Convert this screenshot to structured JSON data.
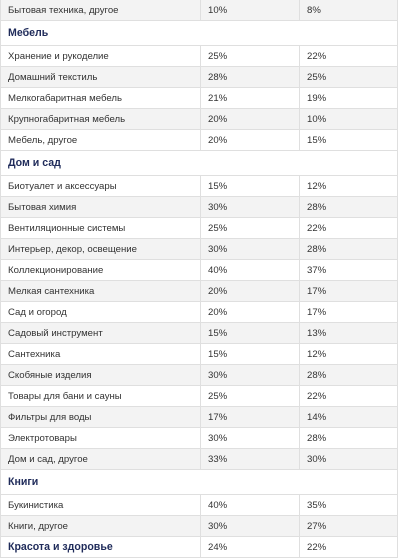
{
  "table": {
    "rows": [
      {
        "type": "data",
        "name": "Бытовая техника, другое",
        "a": "10%",
        "b": "8%"
      },
      {
        "type": "cat",
        "name": "Мебель"
      },
      {
        "type": "data",
        "name": "Хранение и рукоделие",
        "a": "25%",
        "b": "22%"
      },
      {
        "type": "data",
        "name": "Домашний текстиль",
        "a": "28%",
        "b": "25%"
      },
      {
        "type": "data",
        "name": "Мелкогабаритная мебель",
        "a": "21%",
        "b": "19%"
      },
      {
        "type": "data",
        "name": "Крупногабаритная мебель",
        "a": "20%",
        "b": "10%"
      },
      {
        "type": "data",
        "name": "Мебель, другое",
        "a": "20%",
        "b": "15%"
      },
      {
        "type": "cat",
        "name": "Дом и сад"
      },
      {
        "type": "data",
        "name": "Биотуалет и аксессуары",
        "a": "15%",
        "b": "12%"
      },
      {
        "type": "data",
        "name": "Бытовая химия",
        "a": "30%",
        "b": "28%"
      },
      {
        "type": "data",
        "name": "Вентиляционные системы",
        "a": "25%",
        "b": "22%"
      },
      {
        "type": "data",
        "name": "Интерьер, декор, освещение",
        "a": "30%",
        "b": "28%"
      },
      {
        "type": "data",
        "name": "Коллекционирование",
        "a": "40%",
        "b": "37%"
      },
      {
        "type": "data",
        "name": "Мелкая сантехника",
        "a": "20%",
        "b": "17%"
      },
      {
        "type": "data",
        "name": "Сад и огород",
        "a": "20%",
        "b": "17%"
      },
      {
        "type": "data",
        "name": "Садовый инструмент",
        "a": "15%",
        "b": "13%"
      },
      {
        "type": "data",
        "name": "Сантехника",
        "a": "15%",
        "b": "12%"
      },
      {
        "type": "data",
        "name": "Скобяные изделия",
        "a": "30%",
        "b": "28%"
      },
      {
        "type": "data",
        "name": "Товары для бани и сауны",
        "a": "25%",
        "b": "22%"
      },
      {
        "type": "data",
        "name": "Фильтры для воды",
        "a": "17%",
        "b": "14%"
      },
      {
        "type": "data",
        "name": "Электротовары",
        "a": "30%",
        "b": "28%"
      },
      {
        "type": "data",
        "name": "Дом и сад, другое",
        "a": "33%",
        "b": "30%"
      },
      {
        "type": "cat",
        "name": "Книги"
      },
      {
        "type": "data",
        "name": "Букинистика",
        "a": "40%",
        "b": "35%"
      },
      {
        "type": "data",
        "name": "Книги, другое",
        "a": "30%",
        "b": "27%"
      },
      {
        "type": "cat-last",
        "name": "Красота и здоровье",
        "a": "24%",
        "b": "22%"
      }
    ]
  }
}
